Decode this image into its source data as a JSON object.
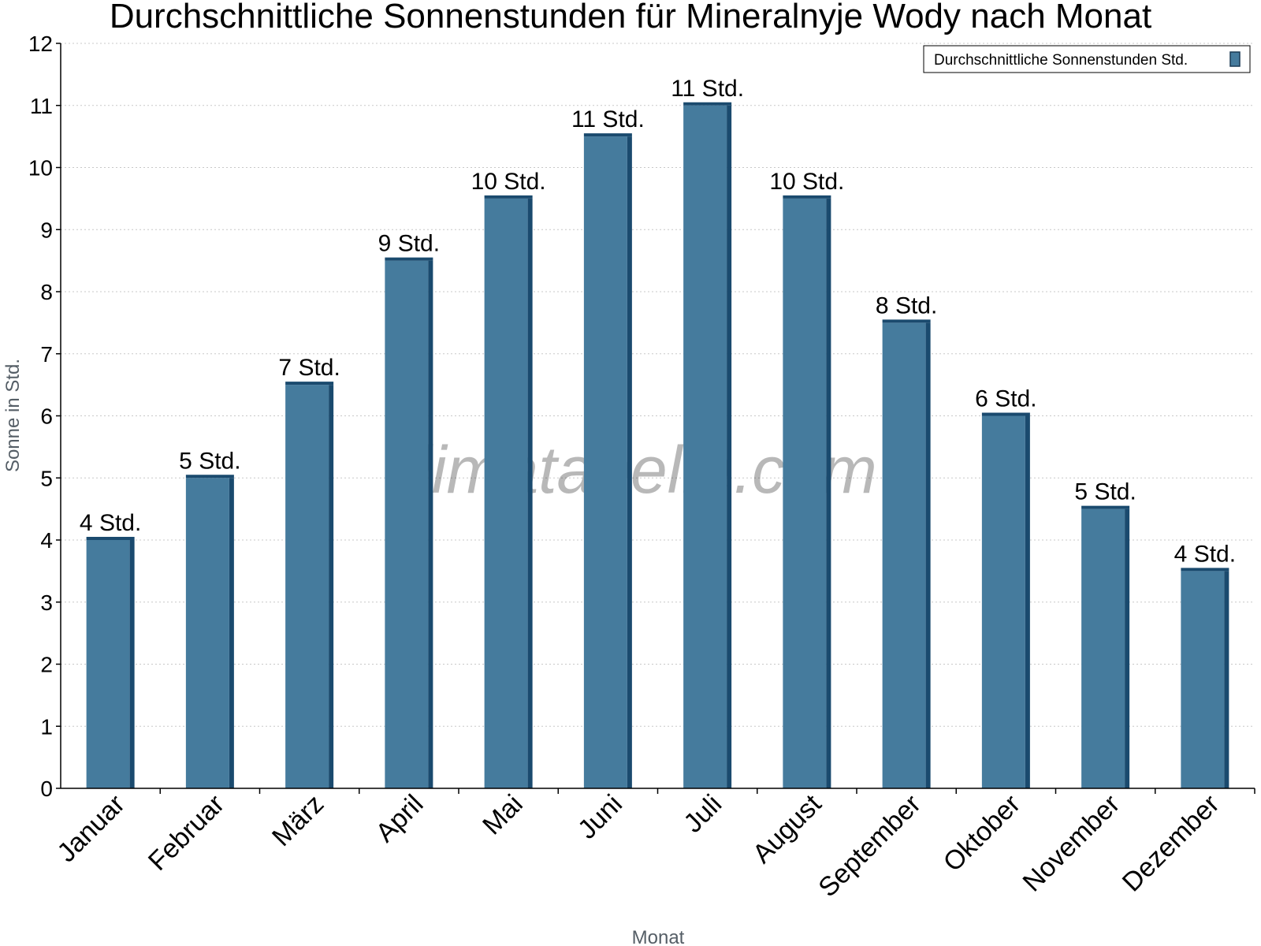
{
  "chart_data": {
    "type": "bar",
    "title": "Durchschnittliche Sonnenstunden für Mineralnyje Wody nach Monat",
    "xlabel": "Monat",
    "ylabel": "Sonne in Std.",
    "ylim": [
      0,
      12
    ],
    "yticks": [
      "0",
      "1",
      "2",
      "3",
      "4",
      "5",
      "6",
      "7",
      "8",
      "9",
      "10",
      "11",
      "12"
    ],
    "grid": true,
    "legend_position": "top-right",
    "categories": [
      "Januar",
      "Februar",
      "März",
      "April",
      "Mai",
      "Juni",
      "Juli",
      "August",
      "September",
      "Oktober",
      "November",
      "Dezember"
    ],
    "series": [
      {
        "name": "Durchschnittliche Sonnenstunden Std.",
        "color": "#457b9d",
        "values": [
          4,
          5,
          6.5,
          8.5,
          9.5,
          10.5,
          11,
          9.5,
          7.5,
          6,
          4.5,
          3.5
        ],
        "labels": [
          "4 Std.",
          "5 Std.",
          "7 Std.",
          "9 Std.",
          "10 Std.",
          "11 Std.",
          "11 Std.",
          "10 Std.",
          "8 Std.",
          "6 Std.",
          "5 Std.",
          "4 Std."
        ]
      }
    ],
    "watermark": "klimatabelle.com"
  }
}
